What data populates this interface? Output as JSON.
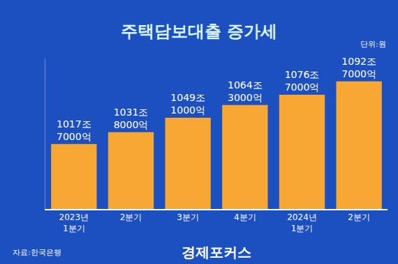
{
  "chart_data": {
    "type": "bar",
    "title": "주택담보대출 증가세",
    "annotations": [
      "단위:원",
      "자료:한국은행",
      "경제포커스"
    ],
    "categories": [
      "2023년\n1분기",
      "2분기",
      "3분기",
      "4분기",
      "2024년\n1분기",
      "2분기"
    ],
    "values": [
      1017.7,
      1031.8,
      1049.1,
      1064.3,
      1076.7,
      1092.7
    ],
    "value_labels": [
      "1017조\n7000억",
      "1031조\n8000억",
      "1049조\n1000억",
      "1064조\n3000억",
      "1076조\n7000억",
      "1092조\n7000억"
    ],
    "color": "#f7a733",
    "ylim": [
      940,
      1120
    ],
    "yticks": [],
    "grid": false,
    "tick_labels": "x",
    "data_labels": true
  }
}
